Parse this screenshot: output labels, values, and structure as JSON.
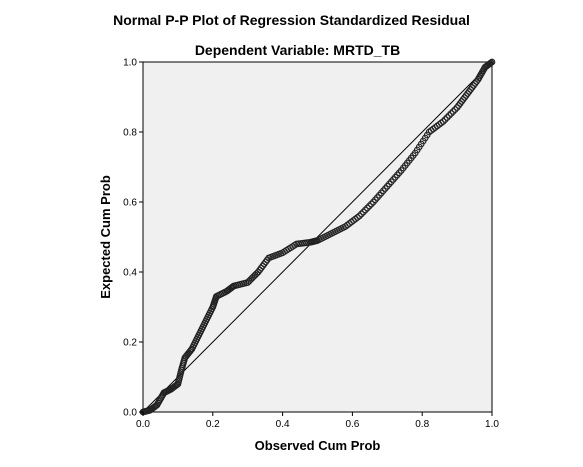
{
  "chart_data": {
    "type": "scatter",
    "title": "Normal P-P Plot of Regression Standardized Residual",
    "subtitle": "Dependent Variable: MRTD_TB",
    "xlabel": "Observed Cum Prob",
    "ylabel": "Expected Cum Prob",
    "xlim": [
      0,
      1
    ],
    "ylim": [
      0,
      1
    ],
    "x_ticks": [
      "0.0",
      "0.2",
      "0.4",
      "0.6",
      "0.8",
      "1.0"
    ],
    "y_ticks": [
      "0.0",
      "0.2",
      "0.4",
      "0.6",
      "0.8",
      "1.0"
    ],
    "grid": false,
    "reference_line": {
      "from": [
        0,
        0
      ],
      "to": [
        1,
        1
      ]
    },
    "curve_points": [
      [
        0.0,
        0.0
      ],
      [
        0.02,
        0.005
      ],
      [
        0.04,
        0.02
      ],
      [
        0.06,
        0.055
      ],
      [
        0.08,
        0.065
      ],
      [
        0.1,
        0.08
      ],
      [
        0.11,
        0.12
      ],
      [
        0.12,
        0.155
      ],
      [
        0.14,
        0.18
      ],
      [
        0.16,
        0.22
      ],
      [
        0.18,
        0.26
      ],
      [
        0.2,
        0.3
      ],
      [
        0.21,
        0.33
      ],
      [
        0.24,
        0.345
      ],
      [
        0.26,
        0.36
      ],
      [
        0.3,
        0.37
      ],
      [
        0.33,
        0.4
      ],
      [
        0.36,
        0.44
      ],
      [
        0.4,
        0.455
      ],
      [
        0.44,
        0.48
      ],
      [
        0.48,
        0.485
      ],
      [
        0.5,
        0.49
      ],
      [
        0.54,
        0.51
      ],
      [
        0.58,
        0.53
      ],
      [
        0.62,
        0.56
      ],
      [
        0.66,
        0.6
      ],
      [
        0.7,
        0.645
      ],
      [
        0.74,
        0.69
      ],
      [
        0.78,
        0.74
      ],
      [
        0.82,
        0.8
      ],
      [
        0.86,
        0.83
      ],
      [
        0.9,
        0.87
      ],
      [
        0.93,
        0.91
      ],
      [
        0.96,
        0.95
      ],
      [
        0.98,
        0.985
      ],
      [
        1.0,
        1.0
      ]
    ],
    "colors": {
      "plot_background": "#f0f0f0",
      "marker": "#222222",
      "line": "#000000"
    }
  }
}
